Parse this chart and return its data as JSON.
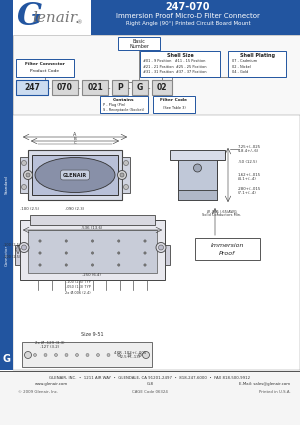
{
  "title_main": "247-070",
  "title_sub": "Immersion Proof Micro-D Filter Connector",
  "title_sub2": "Right Angle (90°) Printed Circuit Board Mount",
  "header_bg": "#2255a0",
  "header_text": "#ffffff",
  "box_border": "#2255a0",
  "box_fill_blue": "#ccdcf0",
  "box_fill_gray": "#d8d8d8",
  "white": "#ffffff",
  "bg_color": "#ffffff",
  "dim_color": "#333333",
  "sidebar_bg": "#2255a0",
  "sidebar_text": "#ffffff",
  "footer_line1": "GLENAIR, INC.  •  1211 AIR WAY  •  GLENDALE, CA 91201-2497  •  818-247-6000  •  FAX 818-500-9912",
  "footer_line2": "www.glenair.com",
  "footer_line3": "G-8",
  "footer_line4": "E-Mail: sales@glenair.com",
  "cage_code": "CAGE Code 06324",
  "copyright": "© 2009 Glenair, Inc.",
  "printed": "Printed in U.S.A.",
  "pn_parts": [
    "247",
    "070",
    "021",
    "P",
    "G",
    "02"
  ],
  "shell_sizes": [
    "#01 - 9 Position   #11 - 15 Position",
    "#21 - 21 Position  #25 - 25 Position",
    "#31 - 31 Position  #37 - 37 Position"
  ],
  "platings": [
    "07 - Cadmium",
    "02 - Nickel",
    "04 - Gold"
  ],
  "contains": [
    "P - Plug (Pin)",
    "S - Receptacle (Socket)"
  ],
  "filter_code": [
    "Filter Code",
    "(See Table 3)"
  ]
}
